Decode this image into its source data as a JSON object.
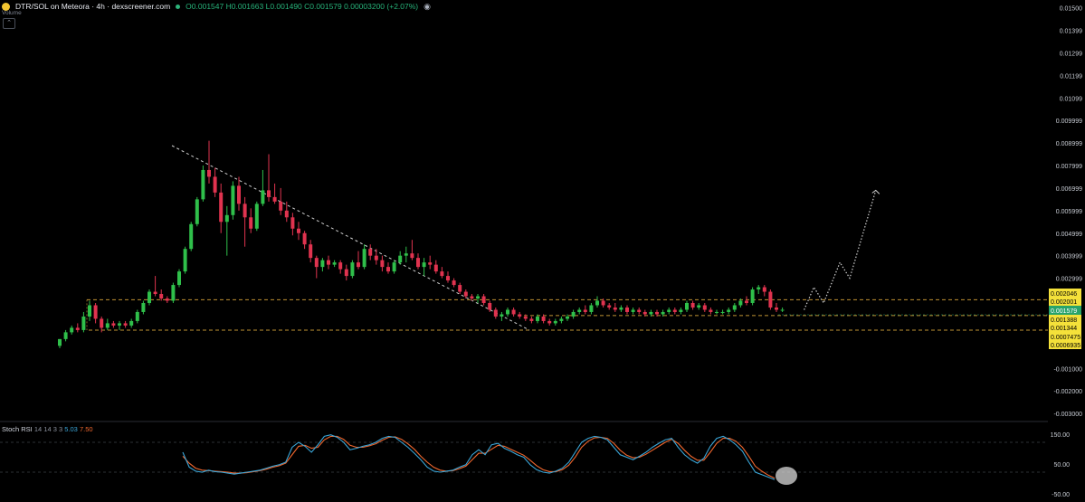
{
  "header": {
    "symbol": "DTR/SOL on Meteora · 4h · dexscreener.com",
    "open": "O0.001547",
    "high": "H0.001663",
    "low": "L0.001490",
    "close": "C0.001579",
    "change": "0.00003200 (+2.07%)",
    "volume_label": "Volume"
  },
  "indicator": {
    "name": "Stoch RSI",
    "params": "14 14 3 3",
    "k_value": "5.03",
    "d_value": "7.50",
    "axis_labels": [
      "150.00",
      "50.00",
      "-50.00"
    ]
  },
  "colors": {
    "up": "#2fbf4a",
    "down": "#e0334f",
    "k_line": "#3aa6d8",
    "d_line": "#f0672e",
    "level_line": "#d6a33a",
    "last_price_badge": "#27a36a",
    "level_badge": "#f4e13a"
  },
  "chart_data": {
    "type": "candlestick",
    "y_axis_labels": [
      "0.01500",
      "0.01399",
      "0.01299",
      "0.01199",
      "0.01099",
      "0.009999",
      "0.008999",
      "0.007999",
      "0.006999",
      "0.005999",
      "0.004999",
      "0.003999",
      "0.002999",
      "0.001579",
      "-0.001000",
      "-0.002000",
      "-0.003000"
    ],
    "ylim": [
      -0.0035,
      0.0151
    ],
    "price_levels": [
      "0.002046",
      "0.002001",
      "0.001388",
      "0.001344",
      "0.0007475",
      "0.0006935"
    ],
    "last_price": "0.001579",
    "candles": [
      [
        0.0,
        0.0003,
        -0.0001,
        0.0003
      ],
      [
        0.0003,
        0.0007,
        0.0002,
        0.0006
      ],
      [
        0.0006,
        0.0009,
        0.0005,
        0.0008
      ],
      [
        0.0008,
        0.001,
        0.0006,
        0.0007
      ],
      [
        0.0007,
        0.0015,
        0.0006,
        0.0013
      ],
      [
        0.0013,
        0.002,
        0.0011,
        0.0018
      ],
      [
        0.0018,
        0.0019,
        0.001,
        0.0012
      ],
      [
        0.0012,
        0.0013,
        0.0006,
        0.0008
      ],
      [
        0.0008,
        0.0012,
        0.0007,
        0.001
      ],
      [
        0.001,
        0.0011,
        0.0008,
        0.0009
      ],
      [
        0.0009,
        0.0011,
        0.0007,
        0.001
      ],
      [
        0.001,
        0.0011,
        0.0008,
        0.0009
      ],
      [
        0.0009,
        0.0012,
        0.0008,
        0.0011
      ],
      [
        0.0011,
        0.0016,
        0.001,
        0.0015
      ],
      [
        0.0015,
        0.002,
        0.0014,
        0.0019
      ],
      [
        0.0019,
        0.0025,
        0.0018,
        0.0024
      ],
      [
        0.0024,
        0.0031,
        0.0022,
        0.0023
      ],
      [
        0.0023,
        0.0025,
        0.002,
        0.0021
      ],
      [
        0.0021,
        0.0022,
        0.0019,
        0.002
      ],
      [
        0.002,
        0.0028,
        0.0019,
        0.0027
      ],
      [
        0.0027,
        0.0034,
        0.0026,
        0.0033
      ],
      [
        0.0033,
        0.0044,
        0.0032,
        0.0043
      ],
      [
        0.0043,
        0.0055,
        0.0042,
        0.0054
      ],
      [
        0.0054,
        0.0066,
        0.0053,
        0.0065
      ],
      [
        0.0065,
        0.008,
        0.0064,
        0.0078
      ],
      [
        0.0078,
        0.0091,
        0.0072,
        0.0075
      ],
      [
        0.0075,
        0.0079,
        0.0066,
        0.0068
      ],
      [
        0.0068,
        0.0072,
        0.005,
        0.0055
      ],
      [
        0.0055,
        0.0062,
        0.004,
        0.0058
      ],
      [
        0.0058,
        0.0073,
        0.0056,
        0.0071
      ],
      [
        0.0071,
        0.0075,
        0.006,
        0.0063
      ],
      [
        0.0063,
        0.0066,
        0.0044,
        0.0057
      ],
      [
        0.0057,
        0.0061,
        0.005,
        0.0052
      ],
      [
        0.0052,
        0.0064,
        0.0051,
        0.0063
      ],
      [
        0.0063,
        0.0078,
        0.0062,
        0.0069
      ],
      [
        0.0069,
        0.0085,
        0.0064,
        0.0066
      ],
      [
        0.0066,
        0.0072,
        0.0063,
        0.0064
      ],
      [
        0.0064,
        0.007,
        0.0058,
        0.006
      ],
      [
        0.006,
        0.0064,
        0.0055,
        0.0057
      ],
      [
        0.0057,
        0.0059,
        0.0049,
        0.0052
      ],
      [
        0.0052,
        0.0055,
        0.0047,
        0.005
      ],
      [
        0.005,
        0.0051,
        0.0043,
        0.0045
      ],
      [
        0.0045,
        0.0047,
        0.0037,
        0.0039
      ],
      [
        0.0039,
        0.004,
        0.003,
        0.0035
      ],
      [
        0.0035,
        0.0039,
        0.0033,
        0.0038
      ],
      [
        0.0038,
        0.004,
        0.0034,
        0.0036
      ],
      [
        0.0036,
        0.0038,
        0.0035,
        0.0037
      ],
      [
        0.0037,
        0.0038,
        0.0032,
        0.0034
      ],
      [
        0.0034,
        0.0036,
        0.0029,
        0.0031
      ],
      [
        0.0031,
        0.0038,
        0.003,
        0.0037
      ],
      [
        0.0037,
        0.0042,
        0.0034,
        0.0035
      ],
      [
        0.0035,
        0.0045,
        0.0034,
        0.0043
      ],
      [
        0.0043,
        0.0045,
        0.0038,
        0.004
      ],
      [
        0.004,
        0.0043,
        0.0036,
        0.0038
      ],
      [
        0.0038,
        0.004,
        0.0033,
        0.0035
      ],
      [
        0.0035,
        0.0037,
        0.0032,
        0.0033
      ],
      [
        0.0033,
        0.0038,
        0.0032,
        0.0037
      ],
      [
        0.0037,
        0.0042,
        0.0036,
        0.004
      ],
      [
        0.004,
        0.0044,
        0.0037,
        0.0041
      ],
      [
        0.0041,
        0.0047,
        0.0038,
        0.0039
      ],
      [
        0.0039,
        0.0041,
        0.0034,
        0.0035
      ],
      [
        0.0035,
        0.0039,
        0.0031,
        0.0037
      ],
      [
        0.0037,
        0.004,
        0.0034,
        0.0036
      ],
      [
        0.0036,
        0.0038,
        0.0032,
        0.0033
      ],
      [
        0.0033,
        0.0035,
        0.003,
        0.0031
      ],
      [
        0.0031,
        0.0033,
        0.0028,
        0.0029
      ],
      [
        0.0029,
        0.003,
        0.0026,
        0.0027
      ],
      [
        0.0027,
        0.0028,
        0.0023,
        0.0024
      ],
      [
        0.0024,
        0.0025,
        0.0021,
        0.0022
      ],
      [
        0.0022,
        0.0023,
        0.002,
        0.0021
      ],
      [
        0.0021,
        0.0023,
        0.0019,
        0.0022
      ],
      [
        0.0022,
        0.0023,
        0.0018,
        0.0019
      ],
      [
        0.0019,
        0.002,
        0.0015,
        0.0016
      ],
      [
        0.0016,
        0.0017,
        0.0012,
        0.0013
      ],
      [
        0.0013,
        0.0015,
        0.0011,
        0.0014
      ],
      [
        0.0014,
        0.0017,
        0.0013,
        0.0016
      ],
      [
        0.0016,
        0.0017,
        0.0013,
        0.0014
      ],
      [
        0.0014,
        0.0015,
        0.0012,
        0.0013
      ],
      [
        0.0013,
        0.0014,
        0.0011,
        0.0012
      ],
      [
        0.0012,
        0.0013,
        0.001,
        0.0011
      ],
      [
        0.0011,
        0.0014,
        0.001,
        0.0013
      ],
      [
        0.0013,
        0.0014,
        0.001,
        0.0011
      ],
      [
        0.0011,
        0.0012,
        0.0009,
        0.001
      ],
      [
        0.001,
        0.0012,
        0.0009,
        0.0011
      ],
      [
        0.0011,
        0.0013,
        0.001,
        0.0012
      ],
      [
        0.0012,
        0.0014,
        0.0011,
        0.0013
      ],
      [
        0.0013,
        0.0016,
        0.0012,
        0.0015
      ],
      [
        0.0015,
        0.0017,
        0.0014,
        0.0016
      ],
      [
        0.0016,
        0.0018,
        0.0014,
        0.0015
      ],
      [
        0.0015,
        0.0019,
        0.0014,
        0.0018
      ],
      [
        0.0018,
        0.0022,
        0.0017,
        0.002
      ],
      [
        0.002,
        0.0021,
        0.0017,
        0.0018
      ],
      [
        0.0018,
        0.0019,
        0.0016,
        0.0017
      ],
      [
        0.0017,
        0.0019,
        0.0015,
        0.0016
      ],
      [
        0.0016,
        0.0018,
        0.0015,
        0.0017
      ],
      [
        0.0017,
        0.0018,
        0.0014,
        0.0015
      ],
      [
        0.0015,
        0.0017,
        0.0014,
        0.0016
      ],
      [
        0.0016,
        0.0017,
        0.0014,
        0.0015
      ],
      [
        0.0015,
        0.0016,
        0.0013,
        0.0014
      ],
      [
        0.0014,
        0.0016,
        0.0013,
        0.0015
      ],
      [
        0.0015,
        0.0016,
        0.0013,
        0.0014
      ],
      [
        0.0014,
        0.0016,
        0.0013,
        0.0015
      ],
      [
        0.0015,
        0.0017,
        0.0014,
        0.0016
      ],
      [
        0.0016,
        0.0017,
        0.0014,
        0.0015
      ],
      [
        0.0015,
        0.0017,
        0.0014,
        0.0016
      ],
      [
        0.0016,
        0.002,
        0.0015,
        0.0019
      ],
      [
        0.0019,
        0.002,
        0.0016,
        0.0017
      ],
      [
        0.0017,
        0.0019,
        0.0016,
        0.0018
      ],
      [
        0.0018,
        0.0019,
        0.0015,
        0.0016
      ],
      [
        0.0016,
        0.0017,
        0.0014,
        0.0015
      ],
      [
        0.0015,
        0.0016,
        0.0014,
        0.0015
      ],
      [
        0.0015,
        0.0016,
        0.0014,
        0.0015
      ],
      [
        0.0015,
        0.0017,
        0.0014,
        0.0016
      ],
      [
        0.0016,
        0.0019,
        0.0015,
        0.0018
      ],
      [
        0.0018,
        0.0021,
        0.0017,
        0.002
      ],
      [
        0.002,
        0.0022,
        0.0018,
        0.0019
      ],
      [
        0.0019,
        0.0026,
        0.0018,
        0.0025
      ],
      [
        0.0025,
        0.0027,
        0.0023,
        0.0026
      ],
      [
        0.0026,
        0.0027,
        0.0022,
        0.0024
      ],
      [
        0.0024,
        0.0025,
        0.0016,
        0.0017
      ],
      [
        0.0017,
        0.0019,
        0.0015,
        0.0016
      ],
      [
        0.0016,
        0.0017,
        0.0015,
        0.0016
      ]
    ],
    "projection_path": [
      [
        0.0016,
        0
      ],
      [
        0.0026,
        3
      ],
      [
        0.0019,
        6
      ],
      [
        0.0037,
        11
      ],
      [
        0.003,
        14
      ],
      [
        0.0069,
        22
      ]
    ],
    "stoch_k": [
      60,
      30,
      22,
      20,
      24,
      21,
      20,
      18,
      16,
      18,
      20,
      22,
      24,
      28,
      32,
      35,
      40,
      70,
      80,
      72,
      60,
      75,
      92,
      95,
      90,
      80,
      65,
      68,
      72,
      75,
      80,
      88,
      92,
      90,
      80,
      70,
      58,
      45,
      30,
      22,
      20,
      22,
      24,
      30,
      35,
      55,
      65,
      55,
      75,
      78,
      68,
      62,
      55,
      50,
      35,
      25,
      20,
      18,
      22,
      28,
      40,
      60,
      80,
      88,
      92,
      90,
      85,
      70,
      55,
      50,
      45,
      52,
      60,
      70,
      78,
      85,
      88,
      70,
      55,
      45,
      38,
      48,
      72,
      88,
      92,
      85,
      75,
      62,
      40,
      20,
      15,
      10,
      5
    ],
    "stoch_d": [
      52,
      38,
      28,
      24,
      23,
      22,
      21,
      20,
      18,
      18,
      19,
      21,
      23,
      26,
      30,
      33,
      38,
      55,
      72,
      74,
      68,
      70,
      85,
      92,
      92,
      86,
      74,
      70,
      70,
      73,
      77,
      84,
      90,
      91,
      86,
      77,
      66,
      52,
      40,
      30,
      24,
      22,
      23,
      27,
      32,
      45,
      58,
      58,
      66,
      74,
      72,
      66,
      60,
      54,
      44,
      33,
      25,
      21,
      21,
      25,
      34,
      50,
      70,
      82,
      89,
      90,
      88,
      78,
      64,
      54,
      49,
      50,
      56,
      64,
      72,
      80,
      86,
      78,
      64,
      52,
      44,
      44,
      60,
      78,
      88,
      88,
      82,
      70,
      52,
      32,
      22,
      14,
      8
    ]
  }
}
